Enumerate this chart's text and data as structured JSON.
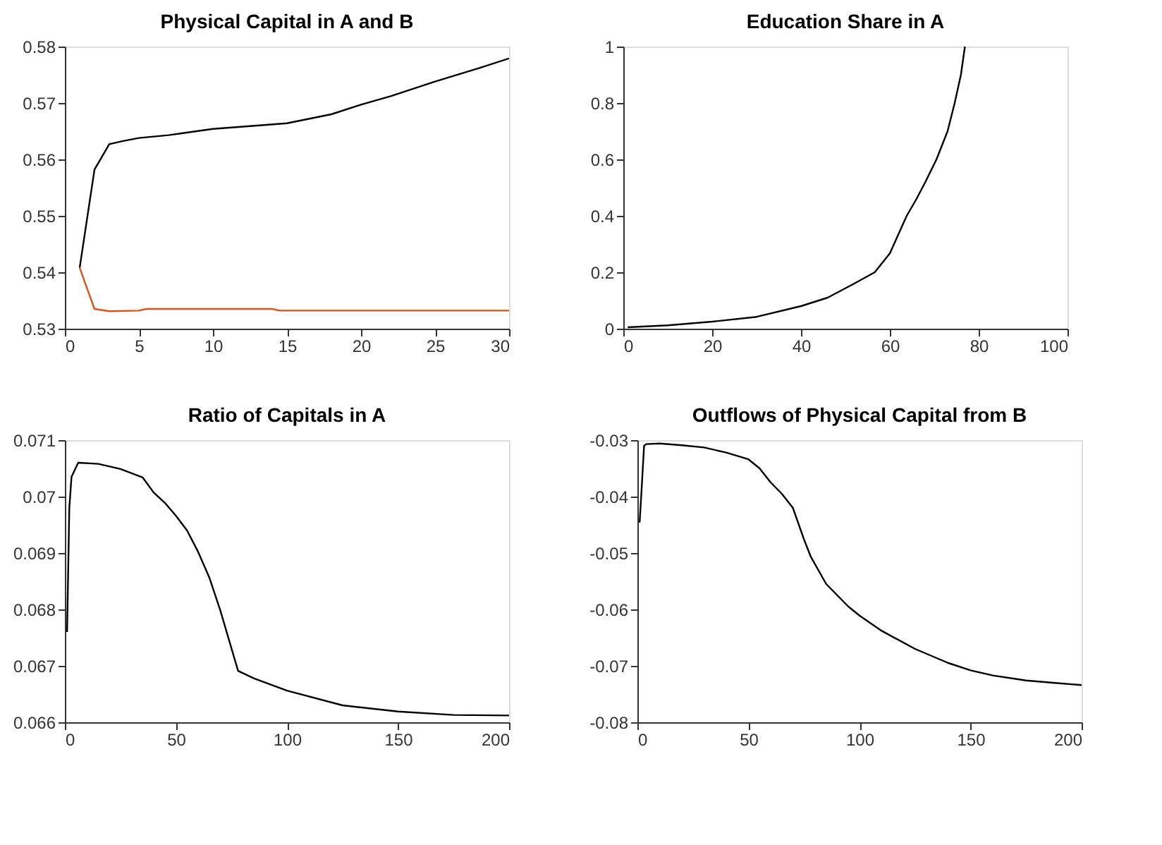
{
  "chart_data": [
    {
      "type": "line",
      "title": "Physical Capital in A and B",
      "xlim": [
        0,
        30
      ],
      "xticks": [
        0,
        5,
        10,
        15,
        20,
        25,
        30
      ],
      "ylim": [
        0.53,
        0.58
      ],
      "yticks": [
        0.53,
        0.54,
        0.55,
        0.56,
        0.57,
        0.58
      ],
      "grid": false,
      "legend": false,
      "series": [
        {
          "color": "#000000",
          "x": [
            1,
            2,
            3,
            4,
            5,
            7,
            10,
            13,
            15,
            18,
            20,
            22,
            25,
            28,
            30
          ],
          "values": [
            0.5408,
            0.5582,
            0.5627,
            0.5633,
            0.5638,
            0.5643,
            0.5654,
            0.566,
            0.5664,
            0.568,
            0.5697,
            0.5712,
            0.5738,
            0.5762,
            0.5779
          ]
        },
        {
          "color": "#d95319",
          "x": [
            1,
            2,
            3,
            5,
            5.5,
            10,
            14,
            14.5,
            20,
            30
          ],
          "values": [
            0.5408,
            0.5335,
            0.5331,
            0.5332,
            0.5335,
            0.5335,
            0.5335,
            0.5332,
            0.5332,
            0.5332
          ]
        }
      ]
    },
    {
      "type": "line",
      "title": "Education Share in A",
      "xlim": [
        0,
        100
      ],
      "xticks": [
        0,
        20,
        40,
        60,
        80,
        100
      ],
      "ylim": [
        0,
        1
      ],
      "yticks": [
        0,
        0.2,
        0.4,
        0.6,
        0.8,
        1
      ],
      "grid": false,
      "legend": false,
      "series": [
        {
          "color": "#000000",
          "x": [
            1,
            10,
            20,
            30,
            40,
            46,
            52,
            56.6,
            60,
            63.8,
            66,
            68,
            70.5,
            73,
            74.6,
            76,
            76.9
          ],
          "values": [
            0.005,
            0.012,
            0.025,
            0.042,
            0.08,
            0.11,
            0.16,
            0.2,
            0.267,
            0.4,
            0.46,
            0.52,
            0.6,
            0.7,
            0.8,
            0.9,
            1.0
          ]
        }
      ]
    },
    {
      "type": "line",
      "title": "Ratio of Capitals in A",
      "xlim": [
        0,
        200
      ],
      "xticks": [
        0,
        50,
        100,
        150,
        200
      ],
      "ylim": [
        0.066,
        0.071
      ],
      "yticks": [
        0.066,
        0.067,
        0.068,
        0.069,
        0.07,
        0.071
      ],
      "grid": false,
      "legend": false,
      "series": [
        {
          "color": "#000000",
          "x": [
            1,
            2,
            3,
            6,
            15,
            25,
            35,
            40,
            45,
            50,
            55,
            60,
            65,
            70,
            75,
            78,
            85,
            100,
            125,
            150,
            175,
            200
          ],
          "values": [
            0.0676,
            0.0698,
            0.07035,
            0.0706,
            0.07058,
            0.07049,
            0.07034,
            0.07007,
            0.06989,
            0.06966,
            0.0694,
            0.06902,
            0.06857,
            0.06798,
            0.06731,
            0.06691,
            0.06678,
            0.06656,
            0.0663,
            0.06619,
            0.06613,
            0.06612
          ]
        }
      ]
    },
    {
      "type": "line",
      "title": "Outflows of Physical Capital from B",
      "xlim": [
        0,
        200
      ],
      "xticks": [
        0,
        50,
        100,
        150,
        200
      ],
      "ylim": [
        -0.08,
        -0.03
      ],
      "yticks": [
        -0.08,
        -0.07,
        -0.06,
        -0.05,
        -0.04,
        -0.03
      ],
      "grid": false,
      "legend": false,
      "series": [
        {
          "color": "#000000",
          "x": [
            1,
            2,
            3,
            4,
            10,
            20,
            30,
            40,
            50,
            55,
            60,
            65,
            70,
            75,
            78,
            85,
            95,
            100,
            110,
            125,
            140,
            150,
            160,
            175,
            190,
            200
          ],
          "values": [
            -0.0446,
            -0.038,
            -0.031,
            -0.0307,
            -0.0306,
            -0.0309,
            -0.0313,
            -0.0322,
            -0.0334,
            -0.035,
            -0.0375,
            -0.0395,
            -0.042,
            -0.0476,
            -0.0506,
            -0.0555,
            -0.0595,
            -0.0611,
            -0.0638,
            -0.067,
            -0.0695,
            -0.0708,
            -0.0717,
            -0.0726,
            -0.0731,
            -0.0734
          ]
        }
      ]
    }
  ]
}
